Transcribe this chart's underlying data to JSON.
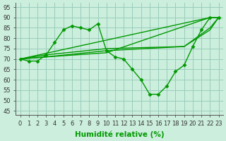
{
  "background_color": "#cceedd",
  "grid_color": "#99ccbb",
  "line_color": "#009900",
  "marker_color": "#009900",
  "xlabel": "Humidité relative (%)",
  "ylabel_ticks": [
    45,
    50,
    55,
    60,
    65,
    70,
    75,
    80,
    85,
    90,
    95
  ],
  "xlim": [
    -0.5,
    23.5
  ],
  "ylim": [
    43,
    97
  ],
  "xticks": [
    0,
    1,
    2,
    3,
    4,
    5,
    6,
    7,
    8,
    9,
    10,
    11,
    12,
    13,
    14,
    15,
    16,
    17,
    18,
    19,
    20,
    21,
    22,
    23
  ],
  "curves": [
    {
      "x": [
        0,
        1,
        2,
        3,
        4,
        5,
        6,
        7,
        8,
        9,
        10,
        11,
        12,
        13,
        14,
        15,
        16,
        17,
        18,
        19,
        20,
        21,
        22,
        23
      ],
      "y": [
        70,
        69,
        69,
        72,
        78,
        84,
        86,
        85,
        84,
        87,
        74,
        71,
        70,
        65,
        60,
        53,
        53,
        57,
        64,
        67,
        76,
        84,
        90,
        90
      ],
      "has_markers": true
    },
    {
      "x": [
        0,
        22,
        23
      ],
      "y": [
        70,
        90,
        90
      ],
      "has_markers": false
    },
    {
      "x": [
        0,
        3,
        10,
        22,
        23
      ],
      "y": [
        70,
        71,
        73,
        90,
        90
      ],
      "has_markers": false
    },
    {
      "x": [
        0,
        3,
        10,
        19,
        22,
        23
      ],
      "y": [
        70,
        71,
        74,
        76,
        85,
        90
      ],
      "has_markers": false
    },
    {
      "x": [
        0,
        3,
        10,
        19,
        22,
        23
      ],
      "y": [
        70,
        72,
        75,
        76,
        84,
        90
      ],
      "has_markers": false
    }
  ],
  "marker": "D",
  "markersize": 2.5,
  "linewidth": 1.0,
  "tick_fontsize": 6.0,
  "xlabel_fontsize": 7.5,
  "xlabel_bold": true
}
